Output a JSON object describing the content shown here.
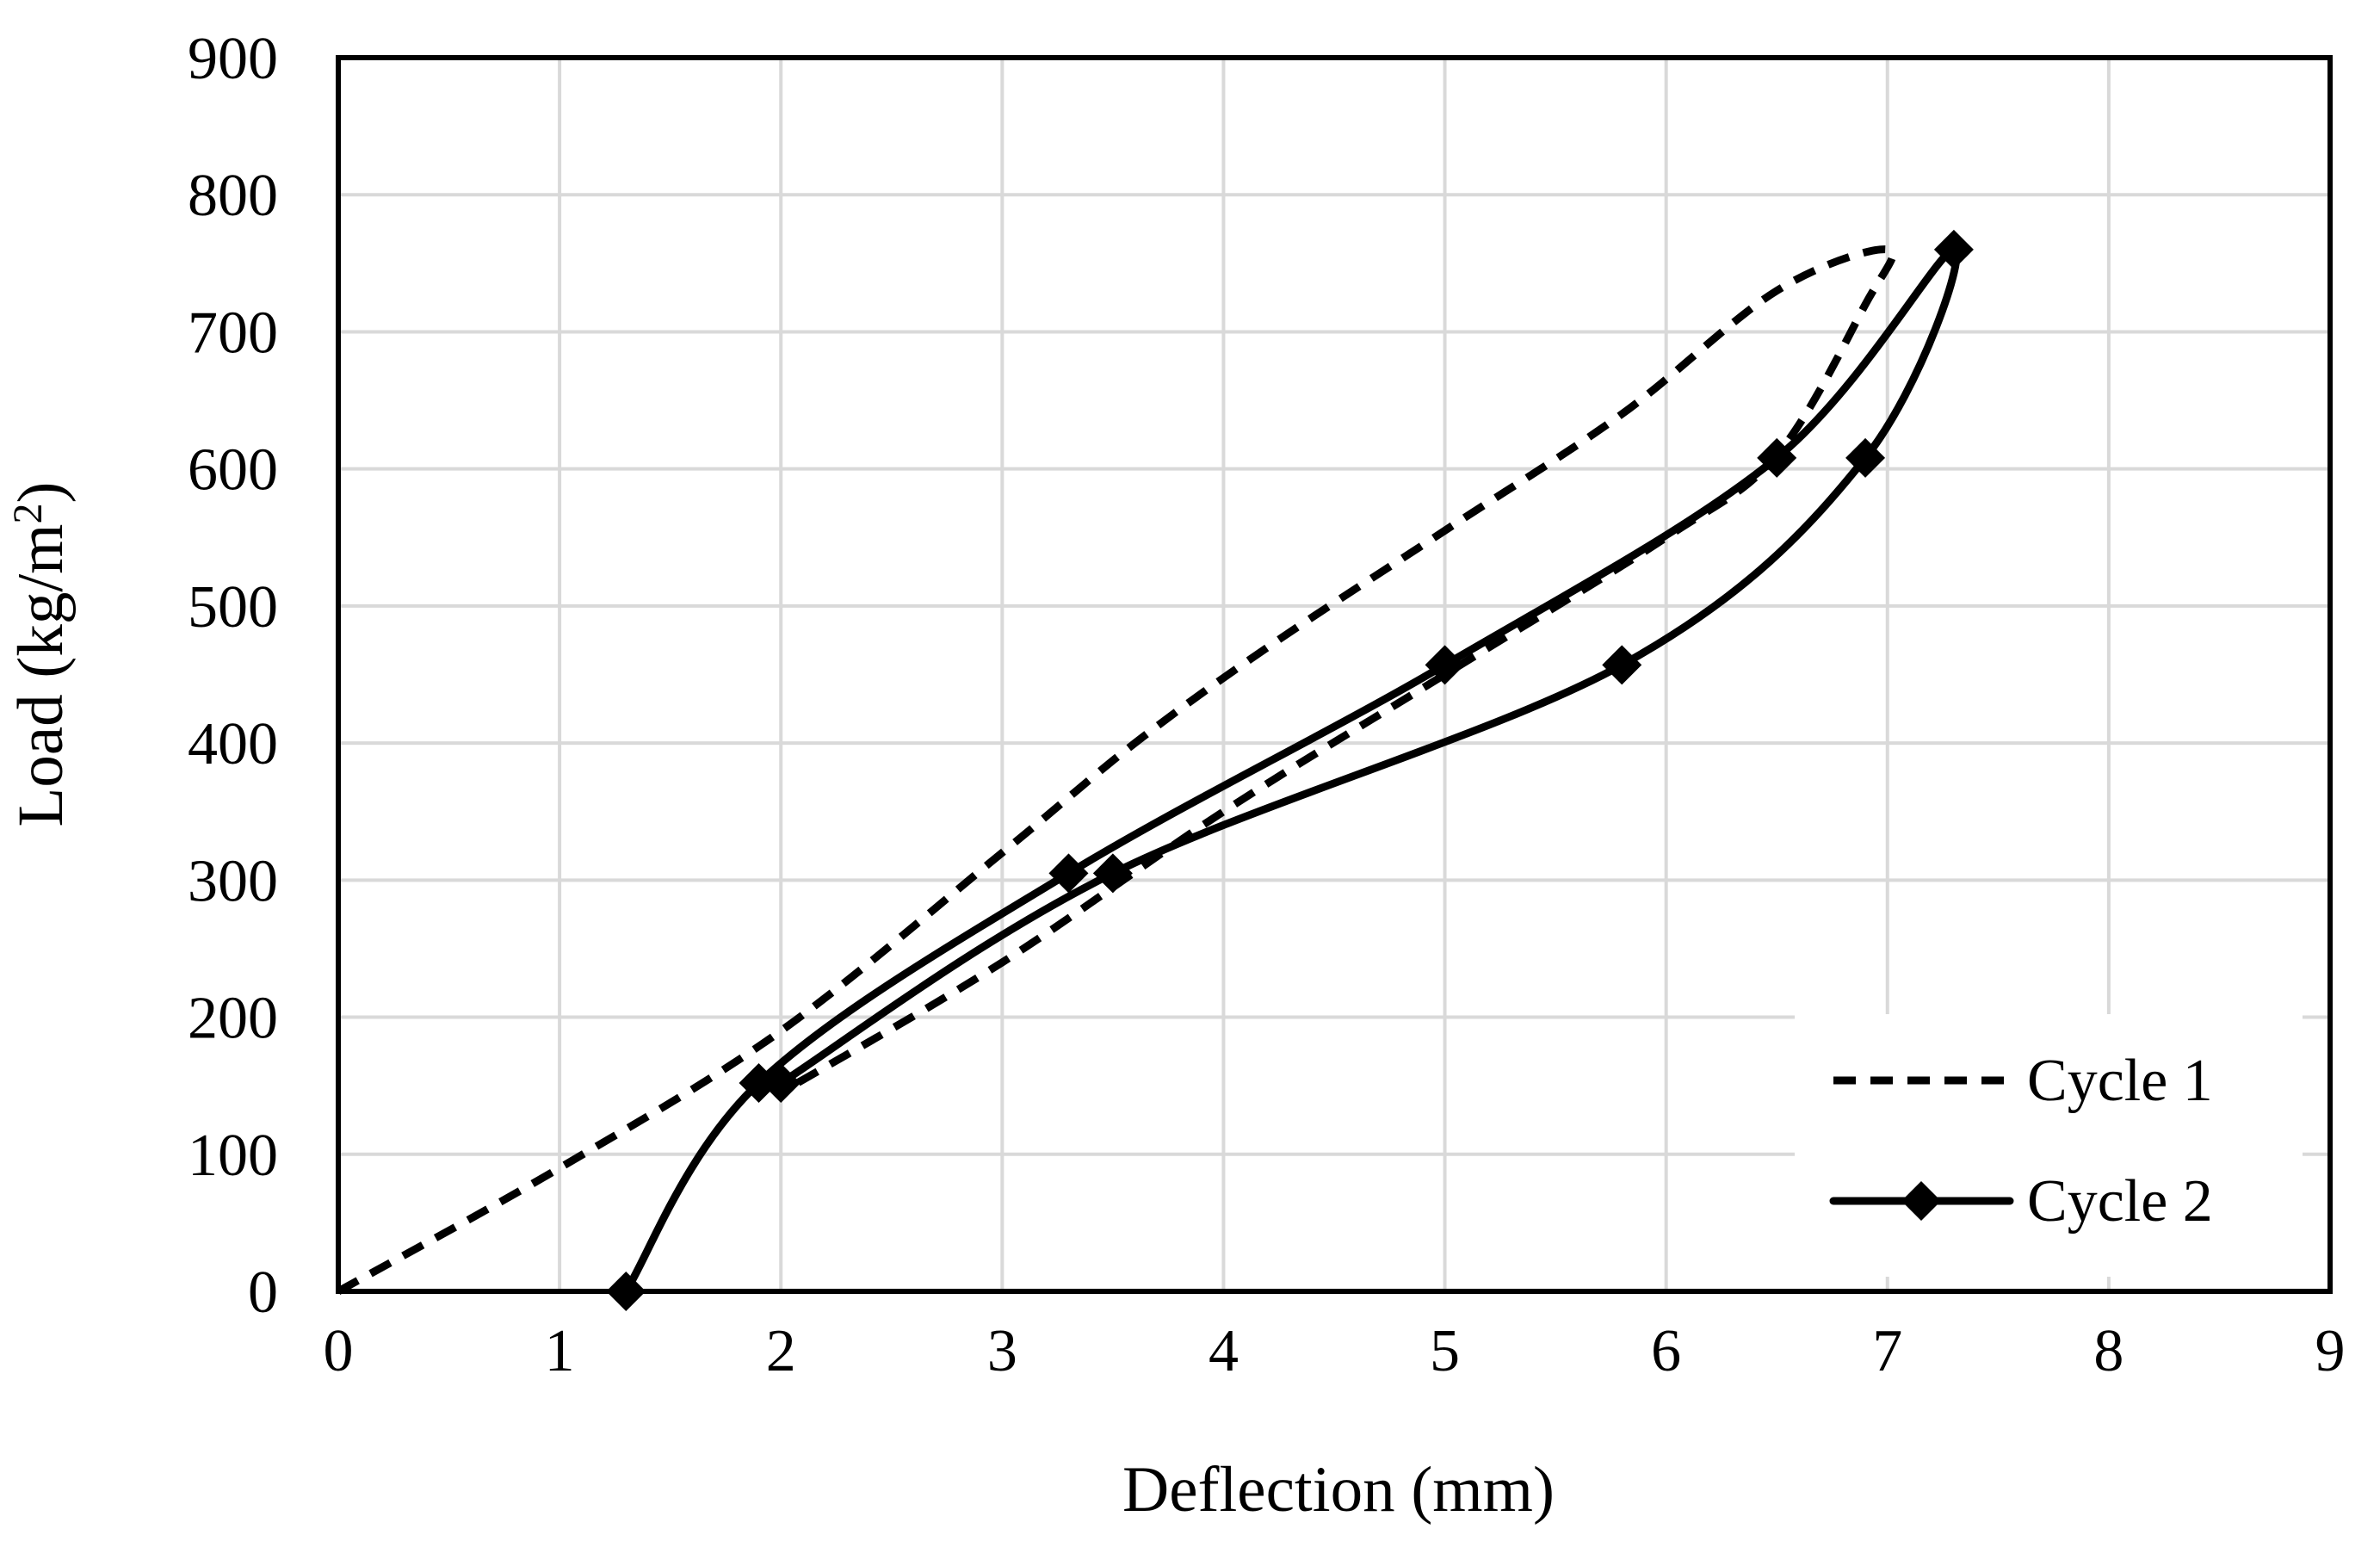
{
  "chart_data": {
    "type": "line",
    "title": "",
    "xlabel": "Deflection (mm)",
    "ylabel": "Load (kg/m2)",
    "ylabel_base": "Load (kg/m",
    "ylabel_sup": "2",
    "ylabel_close": ")",
    "xlim": [
      0,
      9
    ],
    "ylim": [
      0,
      900
    ],
    "xticks": [
      0,
      1,
      2,
      3,
      4,
      5,
      6,
      7,
      8,
      9
    ],
    "yticks": [
      0,
      100,
      200,
      300,
      400,
      500,
      600,
      700,
      800,
      900
    ],
    "grid": true,
    "legend_position": "bottom-right",
    "series": [
      {
        "name": "Cycle 1",
        "style": "dashed",
        "markers": false,
        "x": [
          0,
          1,
          2,
          3,
          3.6,
          4.2,
          5.0,
          5.8,
          6.5,
          7.0,
          6.9,
          6.5,
          6.0,
          5.0,
          4.0,
          3.0,
          2.0
        ],
        "y": [
          0,
          90,
          190,
          320,
          400,
          470,
          555,
          640,
          730,
          760,
          720,
          610,
          550,
          450,
          350,
          240,
          145
        ]
      },
      {
        "name": "Cycle 2",
        "style": "solid",
        "markers": true,
        "marker_shape": "diamond",
        "x": [
          1.3,
          1.9,
          3.3,
          5.0,
          6.5,
          7.3,
          6.9,
          5.8,
          3.5,
          2.0
        ],
        "y": [
          0,
          152,
          305,
          457,
          608,
          760,
          608,
          457,
          305,
          152
        ]
      }
    ]
  }
}
